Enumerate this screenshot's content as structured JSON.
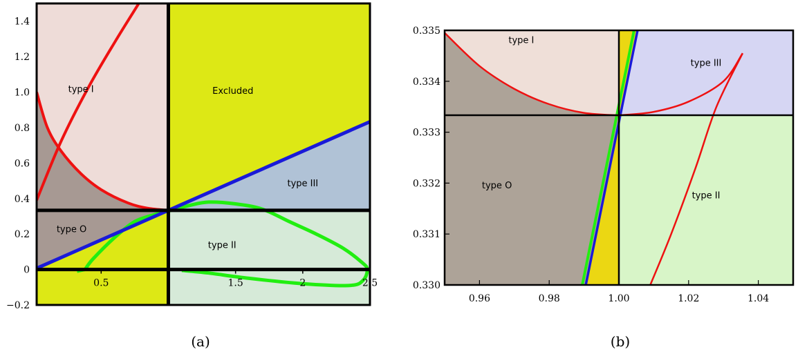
{
  "chart_data": [
    {
      "panel": "a",
      "caption": "(a)",
      "type": "area",
      "xlim": [
        0.02,
        2.5
      ],
      "ylim": [
        -0.2,
        1.5
      ],
      "x_ticks": [
        {
          "v": 0.5,
          "label": "0.5"
        },
        {
          "v": 1.5,
          "label": "1.5"
        },
        {
          "v": 2,
          "label": "2"
        },
        {
          "v": 2.5,
          "label": "2.5"
        }
      ],
      "y_ticks": [
        {
          "v": -0.2,
          "label": "−0.2"
        },
        {
          "v": 0,
          "label": "0"
        },
        {
          "v": 0.2,
          "label": "0.2"
        },
        {
          "v": 0.4,
          "label": "0.4"
        },
        {
          "v": 0.6,
          "label": "0.6"
        },
        {
          "v": 0.8,
          "label": "0.8"
        },
        {
          "v": 1.0,
          "label": "1.0"
        },
        {
          "v": 1.2,
          "label": "1.2"
        },
        {
          "v": 1.4,
          "label": "1.4"
        }
      ],
      "colors": {
        "type_O": "#a79993",
        "type_I": "#eedcd8",
        "excluded": "#dde815",
        "type_III": "#b0c2d6",
        "type_II": "#d6ead8",
        "red": "#ee1111",
        "blue": "#1a1ad8",
        "green": "#22ee11",
        "black": "#000000"
      },
      "region_labels": [
        {
          "text": "type  I",
          "x": 0.35,
          "y": 1.0
        },
        {
          "text": "Excluded",
          "x": 1.48,
          "y": 0.99
        },
        {
          "text": "type III",
          "x": 2.0,
          "y": 0.47
        },
        {
          "text": "type O",
          "x": 0.28,
          "y": 0.21
        },
        {
          "text": "type II",
          "x": 1.4,
          "y": 0.12
        }
      ],
      "curves": {
        "blue_line": [
          [
            0,
            0
          ],
          [
            2.5,
            0.8333
          ]
        ],
        "red_upper": [
          [
            0.02,
            0.39
          ],
          [
            0.2,
            0.72
          ],
          [
            0.4,
            1.02
          ],
          [
            0.6,
            1.28
          ],
          [
            0.78,
            1.5
          ]
        ],
        "red_arc": [
          [
            0.02,
            1.0
          ],
          [
            0.1,
            0.8
          ],
          [
            0.2,
            0.67
          ],
          [
            0.35,
            0.54
          ],
          [
            0.5,
            0.45
          ],
          [
            0.7,
            0.375
          ],
          [
            0.85,
            0.345
          ],
          [
            1.0,
            0.3333
          ]
        ],
        "green_loop": [
          [
            0.38,
            0.0
          ],
          [
            0.44,
            0.06
          ],
          [
            0.6,
            0.18
          ],
          [
            0.75,
            0.27
          ],
          [
            0.9,
            0.31
          ],
          [
            1.0,
            0.33
          ],
          [
            1.15,
            0.36
          ],
          [
            1.3,
            0.38
          ],
          [
            1.5,
            0.37
          ],
          [
            1.7,
            0.34
          ],
          [
            1.9,
            0.27
          ],
          [
            2.1,
            0.2
          ],
          [
            2.3,
            0.12
          ],
          [
            2.44,
            0.04
          ],
          [
            2.48,
            0.0
          ],
          [
            2.45,
            -0.06
          ],
          [
            2.35,
            -0.09
          ],
          [
            2.0,
            -0.08
          ],
          [
            1.6,
            -0.05
          ],
          [
            1.3,
            -0.02
          ],
          [
            1.1,
            -0.005
          ]
        ],
        "green_lower": [
          [
            0.38,
            0.0
          ],
          [
            0.32,
            -0.01
          ]
        ]
      }
    },
    {
      "panel": "b",
      "caption": "(b)",
      "type": "area",
      "xlim": [
        0.95,
        1.05
      ],
      "ylim": [
        0.33,
        0.335
      ],
      "x_ticks": [
        {
          "v": 0.96,
          "label": "0.96"
        },
        {
          "v": 0.98,
          "label": "0.98"
        },
        {
          "v": 1.0,
          "label": "1.00"
        },
        {
          "v": 1.02,
          "label": "1.02"
        },
        {
          "v": 1.04,
          "label": "1.04"
        }
      ],
      "y_ticks": [
        {
          "v": 0.33,
          "label": "0.330"
        },
        {
          "v": 0.331,
          "label": "0.331"
        },
        {
          "v": 0.332,
          "label": "0.332"
        },
        {
          "v": 0.333,
          "label": "0.333"
        },
        {
          "v": 0.334,
          "label": "0.334"
        },
        {
          "v": 0.335,
          "label": "0.335"
        }
      ],
      "colors": {
        "type_O": "#ada398",
        "type_I": "#efdfd8",
        "excluded": "#ebd713",
        "type_III": "#d6d6f3",
        "type_II": "#d8f5c8",
        "red": "#ee1111",
        "blue": "#1a1ad8",
        "green": "#22ee11",
        "black": "#000000"
      },
      "region_labels": [
        {
          "text": "type I",
          "x": 0.972,
          "y": 0.33475
        },
        {
          "text": "type III",
          "x": 1.025,
          "y": 0.3343
        },
        {
          "text": "type O",
          "x": 0.965,
          "y": 0.3319
        },
        {
          "text": "type II",
          "x": 1.025,
          "y": 0.3317
        }
      ],
      "curves": {
        "parabola_left": [
          [
            0.95,
            0.33495
          ],
          [
            0.96,
            0.3343
          ],
          [
            0.97,
            0.33385
          ],
          [
            0.98,
            0.33355
          ],
          [
            0.99,
            0.33338
          ],
          [
            1.0,
            0.33333
          ]
        ],
        "parabola_right": [
          [
            1.0,
            0.33333
          ],
          [
            1.01,
            0.3334
          ],
          [
            1.02,
            0.3336
          ],
          [
            1.03,
            0.334
          ],
          [
            1.0355,
            0.33455
          ]
        ],
        "red_rising": [
          [
            1.009,
            0.33
          ],
          [
            1.015,
            0.331
          ],
          [
            1.022,
            0.3323
          ],
          [
            1.028,
            0.3335
          ],
          [
            1.0355,
            0.33455
          ]
        ],
        "blue_line": [
          [
            0.9905,
            0.33
          ],
          [
            1.0055,
            0.33505
          ]
        ],
        "green_line": [
          [
            0.9895,
            0.33
          ],
          [
            1.0045,
            0.33505
          ]
        ]
      }
    }
  ]
}
